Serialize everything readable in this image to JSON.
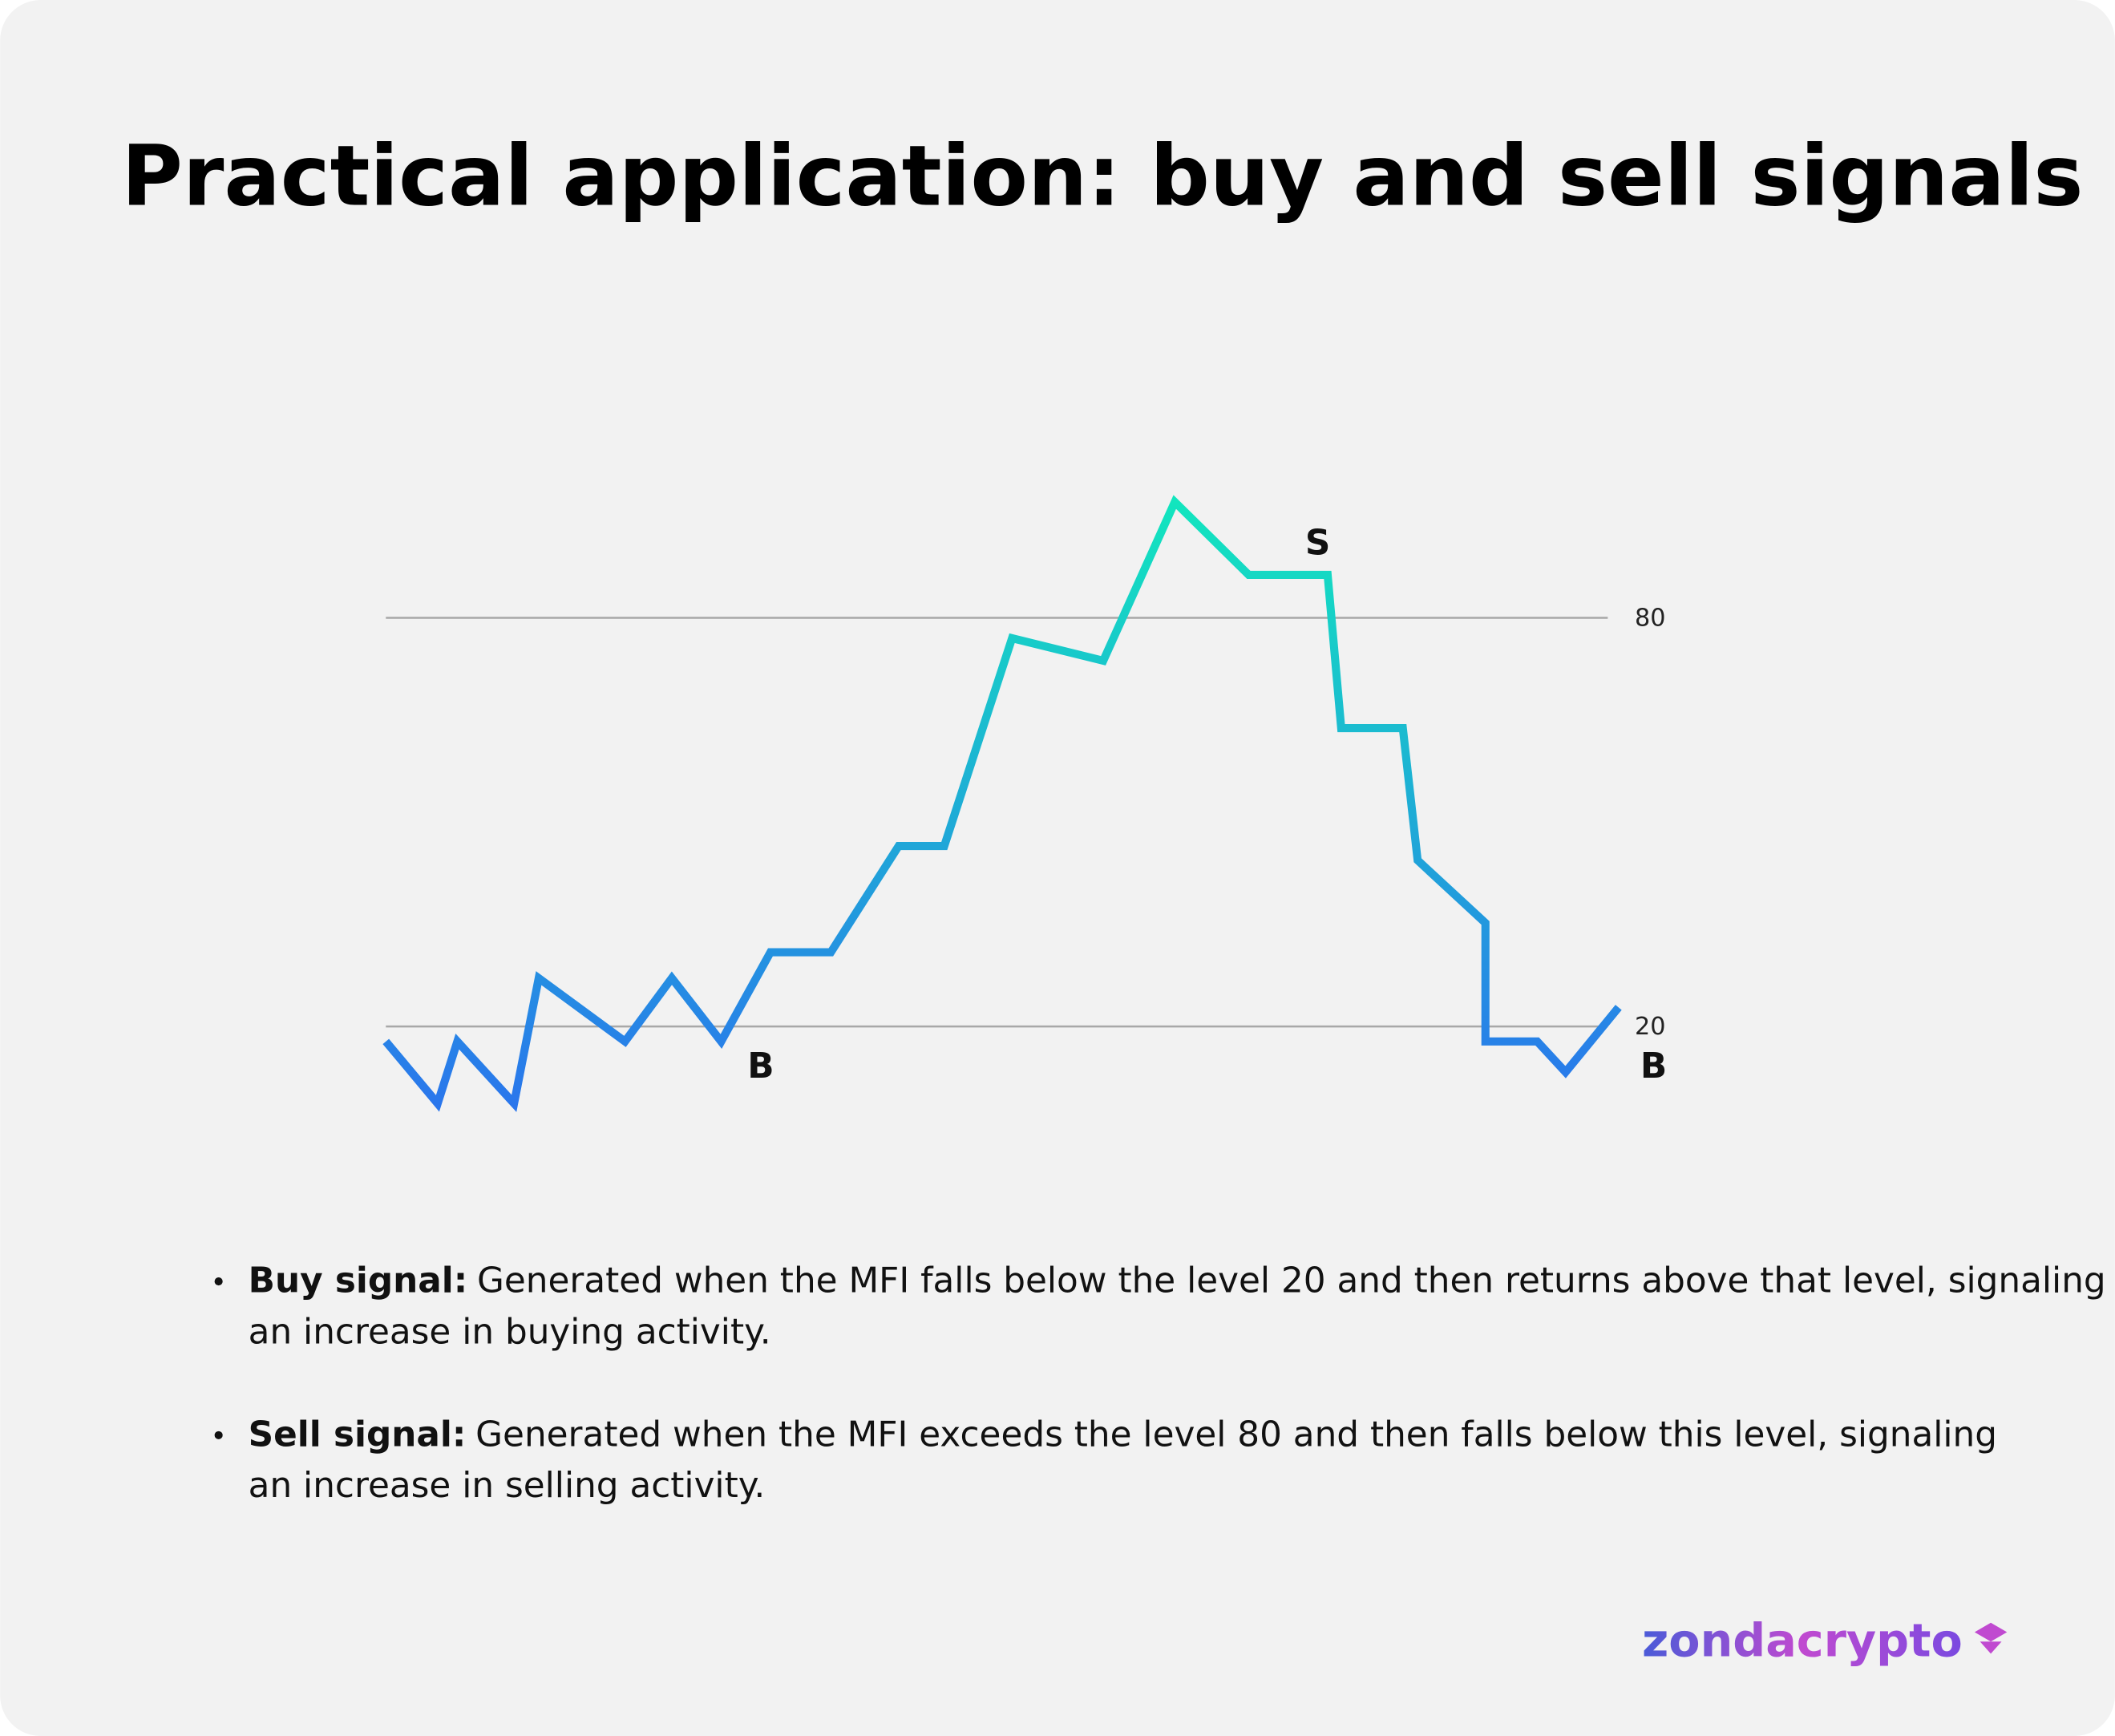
{
  "header": {
    "title": "Practical application: buy and sell signals"
  },
  "chart_data": {
    "type": "line",
    "x": [
      0,
      4.2,
      5.8,
      10.4,
      12.4,
      19.4,
      23.2,
      27.2,
      31.2,
      36.1,
      41.6,
      45.3,
      50.8,
      58.2,
      64.0,
      70.0,
      76.4,
      77.5,
      82.5,
      83.7,
      89.2,
      89.2,
      93.4,
      95.7,
      100
    ],
    "series": [
      {
        "gradient": [
          "#2a76ec",
          "#12e6be"
        ],
        "values": [
          17.8,
          8.7,
          17.8,
          8.7,
          27.1,
          17.8,
          27.1,
          17.8,
          30.9,
          30.9,
          46.5,
          46.5,
          77.0,
          73.7,
          97.0,
          86.3,
          86.3,
          63.8,
          63.8,
          44.4,
          35.2,
          17.8,
          17.8,
          13.3,
          22.8
        ]
      }
    ],
    "xlim": [
      0,
      100
    ],
    "ylim": [
      0,
      100
    ],
    "yticks": [
      20,
      80
    ],
    "grid": true,
    "annotations": [
      "B",
      "S",
      "B"
    ]
  },
  "bullets": [
    {
      "label": "Buy signal:",
      "text_lines": [
        "Generated when the MFI falls below the level 20 and then returns above that level, signaling",
        "an increase in buying activity."
      ]
    },
    {
      "label": "Sell signal:",
      "text_lines": [
        "Generated when the MFI exceeds the level 80  and then falls below this level, signaling",
        "an increase in selling activity."
      ]
    }
  ],
  "logo": "zondacrypto"
}
